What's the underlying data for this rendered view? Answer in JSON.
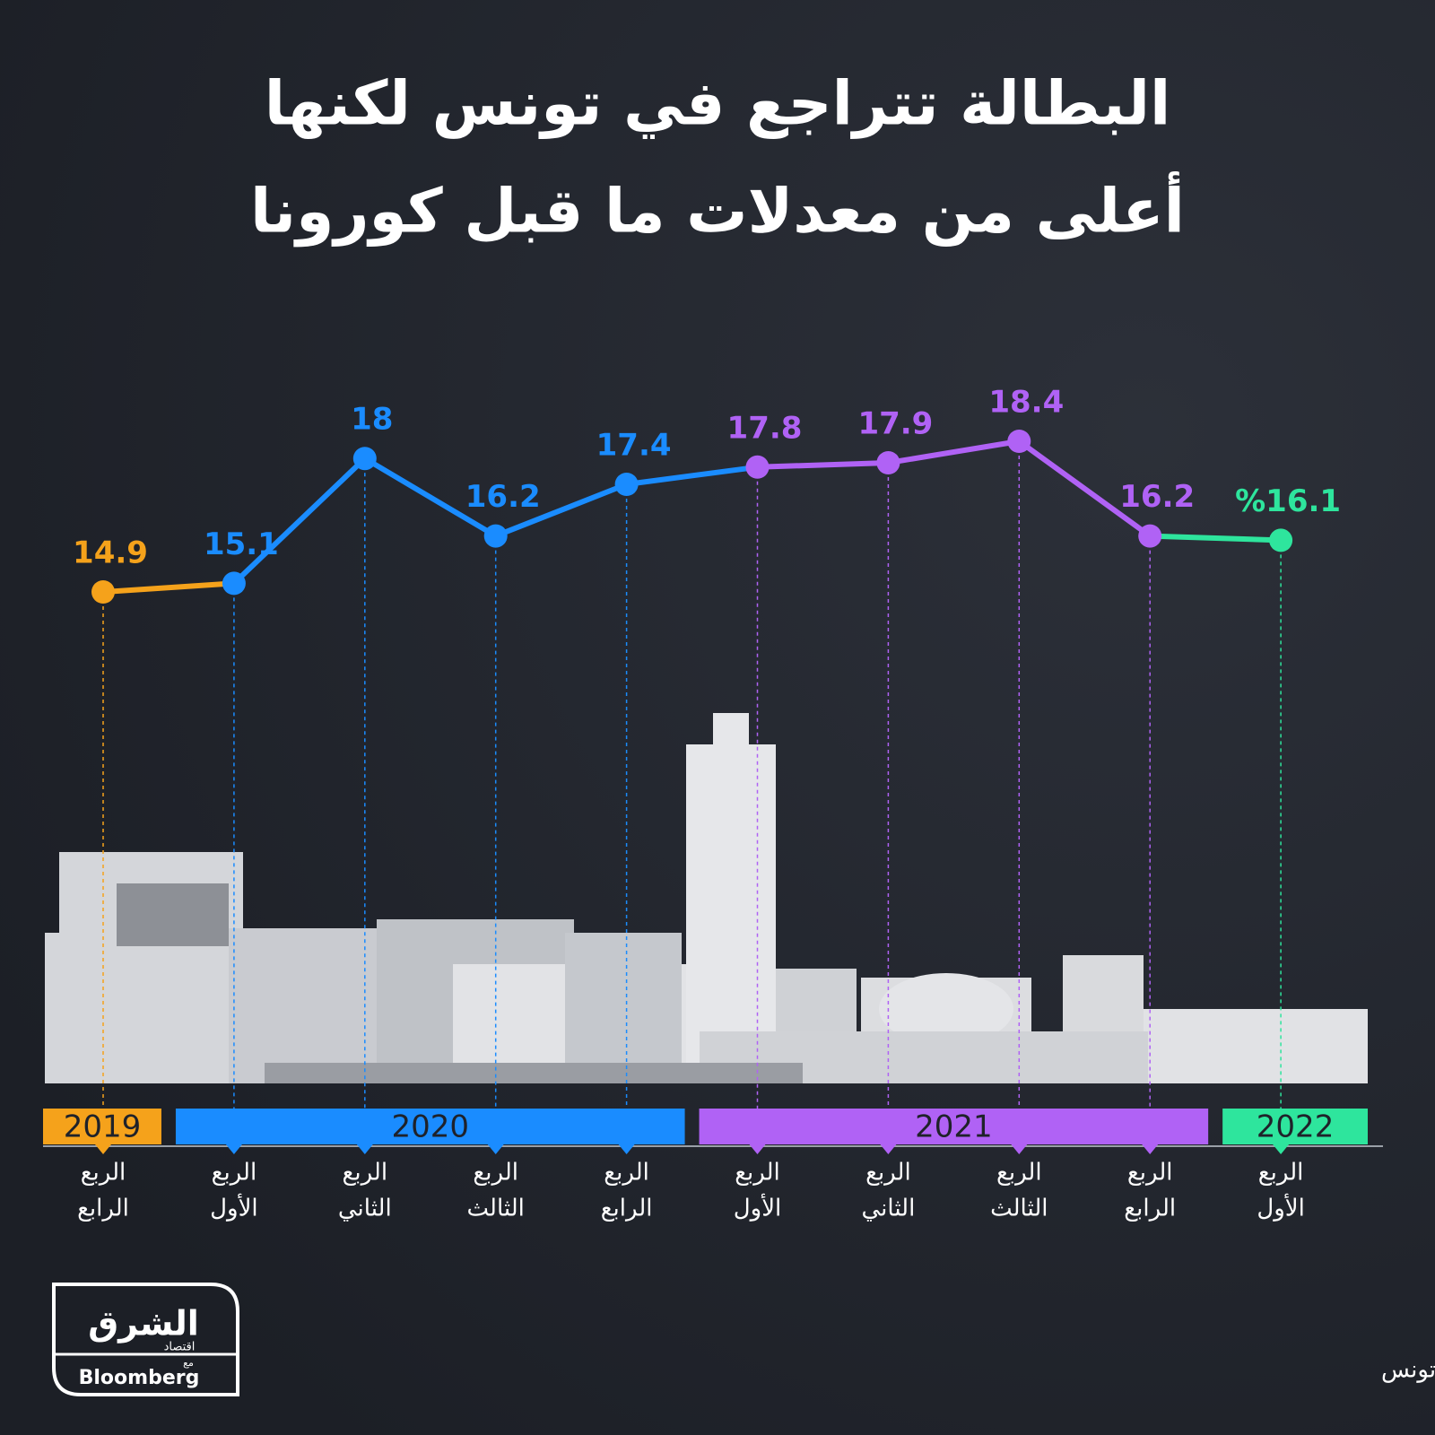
{
  "chart_data": {
    "type": "line",
    "title": [
      "البطالة تتراجع في تونس لكنها",
      "أعلى من معدلات ما قبل كورونا"
    ],
    "categories": [
      [
        "الربع",
        "الرابع"
      ],
      [
        "الربع",
        "الأول"
      ],
      [
        "الربع",
        "الثاني"
      ],
      [
        "الربع",
        "الثالث"
      ],
      [
        "الربع",
        "الرابع"
      ],
      [
        "الربع",
        "الأول"
      ],
      [
        "الربع",
        "الثاني"
      ],
      [
        "الربع",
        "الثالث"
      ],
      [
        "الربع",
        "الرابع"
      ],
      [
        "الربع",
        "الأول"
      ]
    ],
    "series": [
      {
        "name": "2019",
        "color": "#f5a21b",
        "values": [
          14.9,
          null,
          null,
          null,
          null,
          null,
          null,
          null,
          null,
          null
        ]
      },
      {
        "name": "2020",
        "color": "#1a8cff",
        "values": [
          null,
          15.1,
          18,
          16.2,
          17.4,
          null,
          null,
          null,
          null,
          null
        ]
      },
      {
        "name": "2021",
        "color": "#b062f5",
        "values": [
          null,
          null,
          null,
          null,
          null,
          17.8,
          17.9,
          18.4,
          16.2,
          null
        ]
      },
      {
        "name": "2022",
        "color": "#2ee59d",
        "values": [
          null,
          null,
          null,
          null,
          null,
          null,
          null,
          null,
          null,
          16.1
        ]
      }
    ],
    "value_labels": [
      "14.9",
      "15.1",
      "18",
      "16.2",
      "17.4",
      "17.8",
      "17.9",
      "18.4",
      "16.2",
      "%16.1"
    ],
    "source": "المصدر : المعهد الوطني للإحصاء تونس"
  },
  "logo": {
    "name": "الشرق",
    "section": "اقتصاد",
    "with": "مع",
    "partner": "Bloomberg"
  }
}
